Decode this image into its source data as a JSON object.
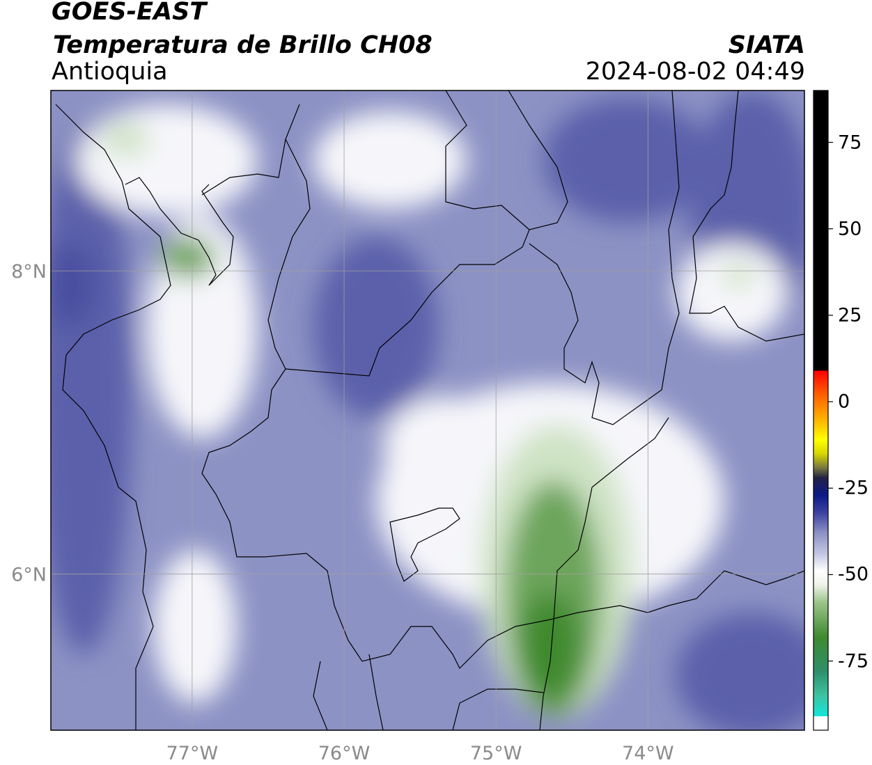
{
  "header": {
    "satellite": "GOES-EAST",
    "product": "Temperatura de Brillo CH08",
    "region": "Antioquia",
    "org": "SIATA",
    "datetime": "2024-08-02 04:49"
  },
  "map": {
    "extent": {
      "lon_min": -77.93,
      "lon_max": -72.97,
      "lat_min": 4.97,
      "lat_max": 9.19
    },
    "lon_ticks": [
      {
        "value": -77,
        "label": "77°W"
      },
      {
        "value": -76,
        "label": "76°W"
      },
      {
        "value": -75,
        "label": "75°W"
      },
      {
        "value": -74,
        "label": "74°W"
      }
    ],
    "lat_ticks": [
      {
        "value": 8,
        "label": "8°N"
      },
      {
        "value": 6,
        "label": "6°N"
      }
    ],
    "colors": {
      "base": "#8c92c4",
      "dark": "#5b60aa",
      "darker": "#4b4fa0",
      "white": "#f6f6fa",
      "light_green": "#cfe3c5",
      "green": "#6da55c",
      "dark_green": "#3f8a2f",
      "grid": "#a0a0a0",
      "boundary": "#000000"
    }
  },
  "colorbar": {
    "range": [
      -95,
      90
    ],
    "ticks": [
      {
        "value": 75,
        "label": "75"
      },
      {
        "value": 50,
        "label": "50"
      },
      {
        "value": 25,
        "label": "25"
      },
      {
        "value": 0,
        "label": "0"
      },
      {
        "value": -25,
        "label": "-25"
      },
      {
        "value": -50,
        "label": "-50"
      },
      {
        "value": -75,
        "label": "-75"
      }
    ],
    "stops": [
      {
        "value": -95,
        "color": "#ffffff"
      },
      {
        "value": -91,
        "color": "#ffffff"
      },
      {
        "value": -91,
        "color": "#12e6da"
      },
      {
        "value": -85,
        "color": "#3fc3a1"
      },
      {
        "value": -78,
        "color": "#2f8f6b"
      },
      {
        "value": -68,
        "color": "#3f8a2f"
      },
      {
        "value": -58,
        "color": "#9cc58a"
      },
      {
        "value": -53,
        "color": "#eef3e8"
      },
      {
        "value": -49,
        "color": "#ffffff"
      },
      {
        "value": -44,
        "color": "#c3c6e2"
      },
      {
        "value": -38,
        "color": "#8c92c4"
      },
      {
        "value": -32,
        "color": "#3b40a0"
      },
      {
        "value": -27,
        "color": "#0b1a86"
      },
      {
        "value": -22,
        "color": "#222244"
      },
      {
        "value": -19,
        "color": "#7a7a40"
      },
      {
        "value": -15,
        "color": "#d7d700"
      },
      {
        "value": -11,
        "color": "#ffff00"
      },
      {
        "value": -5,
        "color": "#ffb000"
      },
      {
        "value": 2,
        "color": "#ff6000"
      },
      {
        "value": 9,
        "color": "#ff0000"
      },
      {
        "value": 9,
        "color": "#000000"
      },
      {
        "value": 90,
        "color": "#000000"
      }
    ]
  }
}
